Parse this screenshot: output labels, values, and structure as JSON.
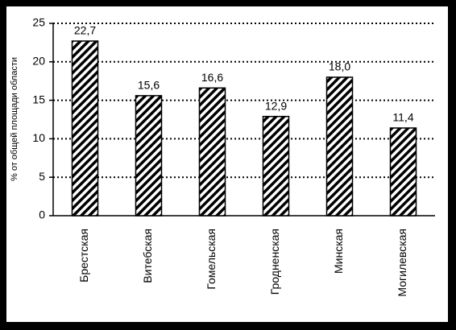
{
  "chart_data": {
    "type": "bar",
    "y_label": "% от общей площади области",
    "categories": [
      "Брестская",
      "Витебская",
      "Гомельская",
      "Гродненская",
      "Минская",
      "Могилевская"
    ],
    "values": [
      22.7,
      15.6,
      16.6,
      12.9,
      18.0,
      11.4
    ],
    "value_labels": [
      "22,7",
      "15,6",
      "16,6",
      "12,9",
      "18,0",
      "11,4"
    ],
    "color": "#000000",
    "ylim": [
      0,
      25
    ],
    "yticks": [
      0,
      5,
      10,
      15,
      20,
      25
    ],
    "grid": true
  }
}
